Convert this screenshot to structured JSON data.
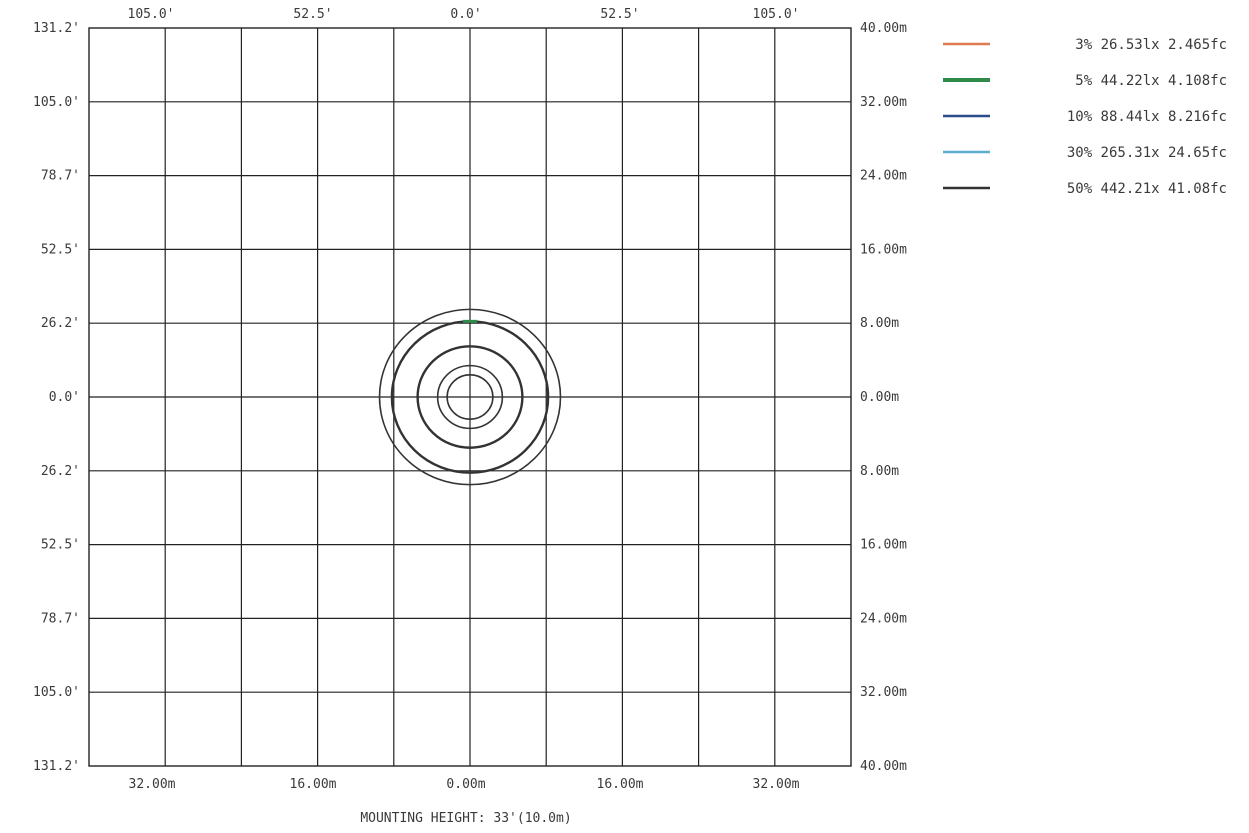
{
  "chart_data": {
    "type": "isolux-contour",
    "caption": "MOUNTING HEIGHT: 33'(10.0m)",
    "top_tick_labels": [
      "105.0'",
      "52.5'",
      "0.0'",
      "52.5'",
      "105.0'"
    ],
    "left_tick_labels": [
      "131.2'",
      "105.0'",
      "78.7'",
      "52.5'",
      "26.2'",
      "0.0'",
      "26.2'",
      "52.5'",
      "78.7'",
      "105.0'",
      "131.2'"
    ],
    "right_tick_labels": [
      "40.00m",
      "32.00m",
      "24.00m",
      "16.00m",
      "8.00m",
      "0.00m",
      "8.00m",
      "16.00m",
      "24.00m",
      "32.00m",
      "40.00m"
    ],
    "bottom_tick_labels": [
      "32.00m",
      "16.00m",
      "0.00m",
      "16.00m",
      "32.00m"
    ],
    "x_range_m": [
      -40,
      40
    ],
    "y_range_m": [
      -40,
      40
    ],
    "grid_step_m": 8,
    "grid": true,
    "legend_position": "top-right",
    "series": [
      {
        "name": "3% 26.53lx 2.465fc",
        "percent": "3%",
        "lux": "26.53lx",
        "fc": "2.465fc",
        "color": "#e07a52",
        "radius_m": 9.5
      },
      {
        "name": "5% 44.22lx 4.108fc",
        "percent": "5%",
        "lux": "44.22lx",
        "fc": "4.108fc",
        "color": "#2e8b4a",
        "radius_m": 8.2
      },
      {
        "name": "10% 88.44lx 8.216fc",
        "percent": "10%",
        "lux": "88.44lx",
        "fc": "8.216fc",
        "color": "#2a4d8a",
        "radius_m": 5.5
      },
      {
        "name": "30% 265.31x 24.65fc",
        "percent": "30%",
        "lux": "265.31x",
        "fc": "24.65fc",
        "color": "#5aaecf",
        "radius_m": 3.4
      },
      {
        "name": "50% 442.21x 41.08fc",
        "percent": "50%",
        "lux": "442.21x",
        "fc": "41.08fc",
        "color": "#333333",
        "radius_m": 2.4
      }
    ]
  }
}
